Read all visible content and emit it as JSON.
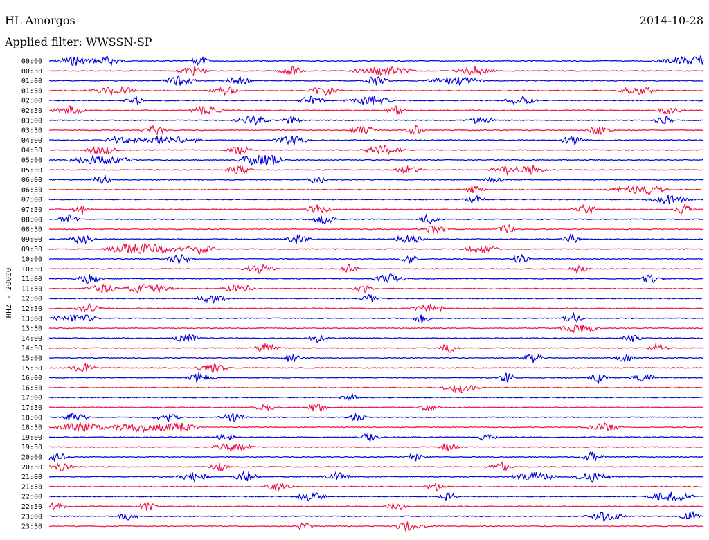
{
  "header": {
    "station": "HL Amorgos",
    "date": "2014-10-28",
    "filter": "Applied filter: WWSSN-SP"
  },
  "channel_label": "HHZ - 20000",
  "colors": {
    "trace_a": "#0000dd",
    "trace_b": "#ee1144",
    "text": "#000000",
    "background": "#ffffff"
  },
  "chart_data": {
    "type": "line",
    "title": "",
    "xlabel": "",
    "ylabel": "HHZ - 20000",
    "grid": false,
    "legend": "none",
    "series": [
      {
        "label": "00:00",
        "color": "#0000dd",
        "bursts": [
          [
            0.04,
            0.06
          ],
          [
            0.09,
            0.05
          ],
          [
            0.23,
            0.03
          ],
          [
            0.985,
            0.11
          ]
        ]
      },
      {
        "label": "00:30",
        "color": "#ee1144",
        "bursts": [
          [
            0.22,
            0.05
          ],
          [
            0.37,
            0.04
          ],
          [
            0.51,
            0.09
          ],
          [
            0.65,
            0.06
          ]
        ]
      },
      {
        "label": "01:00",
        "color": "#0000dd",
        "bursts": [
          [
            0.2,
            0.05
          ],
          [
            0.29,
            0.04
          ],
          [
            0.5,
            0.04
          ],
          [
            0.62,
            0.08
          ]
        ]
      },
      {
        "label": "01:30",
        "color": "#ee1144",
        "bursts": [
          [
            0.1,
            0.07
          ],
          [
            0.27,
            0.05
          ],
          [
            0.42,
            0.05
          ],
          [
            0.9,
            0.06
          ]
        ]
      },
      {
        "label": "02:00",
        "color": "#0000dd",
        "bursts": [
          [
            0.13,
            0.03
          ],
          [
            0.4,
            0.04
          ],
          [
            0.49,
            0.07
          ],
          [
            0.72,
            0.05
          ]
        ]
      },
      {
        "label": "02:30",
        "color": "#ee1144",
        "bursts": [
          [
            0.03,
            0.05
          ],
          [
            0.24,
            0.05
          ],
          [
            0.53,
            0.03
          ],
          [
            0.95,
            0.04
          ]
        ]
      },
      {
        "label": "03:00",
        "color": "#0000dd",
        "bursts": [
          [
            0.31,
            0.05
          ],
          [
            0.37,
            0.03
          ],
          [
            0.66,
            0.04
          ],
          [
            0.94,
            0.03
          ]
        ]
      },
      {
        "label": "03:30",
        "color": "#ee1144",
        "bursts": [
          [
            0.16,
            0.04
          ],
          [
            0.48,
            0.04
          ],
          [
            0.56,
            0.03
          ],
          [
            0.84,
            0.04
          ]
        ]
      },
      {
        "label": "04:00",
        "color": "#0000dd",
        "bursts": [
          [
            0.11,
            0.05
          ],
          [
            0.18,
            0.1
          ],
          [
            0.37,
            0.05
          ],
          [
            0.8,
            0.04
          ]
        ]
      },
      {
        "label": "04:30",
        "color": "#ee1144",
        "bursts": [
          [
            0.08,
            0.05
          ],
          [
            0.29,
            0.04
          ],
          [
            0.51,
            0.06
          ]
        ]
      },
      {
        "label": "05:00",
        "color": "#0000dd",
        "bursts": [
          [
            0.08,
            0.1
          ],
          [
            0.31,
            0.05
          ],
          [
            0.34,
            0.04
          ]
        ]
      },
      {
        "label": "05:30",
        "color": "#ee1144",
        "bursts": [
          [
            0.29,
            0.04
          ],
          [
            0.55,
            0.04
          ],
          [
            0.7,
            0.05
          ],
          [
            0.74,
            0.04
          ]
        ]
      },
      {
        "label": "06:00",
        "color": "#0000dd",
        "bursts": [
          [
            0.08,
            0.03
          ],
          [
            0.41,
            0.03
          ],
          [
            0.68,
            0.03
          ]
        ]
      },
      {
        "label": "06:30",
        "color": "#ee1144",
        "bursts": [
          [
            0.65,
            0.03
          ],
          [
            0.88,
            0.05
          ],
          [
            0.92,
            0.05
          ]
        ]
      },
      {
        "label": "07:00",
        "color": "#0000dd",
        "bursts": [
          [
            0.65,
            0.03
          ],
          [
            0.95,
            0.07
          ]
        ]
      },
      {
        "label": "07:30",
        "color": "#ee1144",
        "bursts": [
          [
            0.05,
            0.03
          ],
          [
            0.41,
            0.04
          ],
          [
            0.82,
            0.04
          ],
          [
            0.97,
            0.03
          ]
        ]
      },
      {
        "label": "08:00",
        "color": "#0000dd",
        "bursts": [
          [
            0.03,
            0.03
          ],
          [
            0.42,
            0.04
          ],
          [
            0.58,
            0.03
          ]
        ]
      },
      {
        "label": "08:30",
        "color": "#ee1144",
        "bursts": [
          [
            0.59,
            0.04
          ],
          [
            0.7,
            0.03
          ]
        ]
      },
      {
        "label": "09:00",
        "color": "#0000dd",
        "bursts": [
          [
            0.05,
            0.04
          ],
          [
            0.38,
            0.04
          ],
          [
            0.55,
            0.05
          ],
          [
            0.8,
            0.03
          ]
        ]
      },
      {
        "label": "09:30",
        "color": "#ee1144",
        "bursts": [
          [
            0.12,
            0.07
          ],
          [
            0.16,
            0.09
          ],
          [
            0.23,
            0.05
          ],
          [
            0.66,
            0.05
          ]
        ]
      },
      {
        "label": "10:00",
        "color": "#0000dd",
        "bursts": [
          [
            0.2,
            0.04
          ],
          [
            0.55,
            0.03
          ],
          [
            0.72,
            0.03
          ]
        ]
      },
      {
        "label": "10:30",
        "color": "#ee1144",
        "bursts": [
          [
            0.32,
            0.05
          ],
          [
            0.46,
            0.03
          ],
          [
            0.81,
            0.03
          ]
        ]
      },
      {
        "label": "11:00",
        "color": "#0000dd",
        "bursts": [
          [
            0.06,
            0.04
          ],
          [
            0.52,
            0.05
          ],
          [
            0.92,
            0.04
          ]
        ]
      },
      {
        "label": "11:30",
        "color": "#ee1144",
        "bursts": [
          [
            0.08,
            0.05
          ],
          [
            0.15,
            0.08
          ],
          [
            0.29,
            0.05
          ],
          [
            0.48,
            0.03
          ]
        ]
      },
      {
        "label": "12:00",
        "color": "#0000dd",
        "bursts": [
          [
            0.25,
            0.05
          ],
          [
            0.49,
            0.03
          ]
        ]
      },
      {
        "label": "12:30",
        "color": "#ee1144",
        "bursts": [
          [
            0.06,
            0.04
          ],
          [
            0.58,
            0.05
          ]
        ]
      },
      {
        "label": "13:00",
        "color": "#0000dd",
        "bursts": [
          [
            0.04,
            0.07
          ],
          [
            0.57,
            0.03
          ],
          [
            0.8,
            0.03
          ]
        ]
      },
      {
        "label": "13:30",
        "color": "#ee1144",
        "bursts": [
          [
            0.81,
            0.06
          ]
        ]
      },
      {
        "label": "14:00",
        "color": "#0000dd",
        "bursts": [
          [
            0.21,
            0.04
          ],
          [
            0.41,
            0.03
          ],
          [
            0.89,
            0.03
          ]
        ]
      },
      {
        "label": "14:30",
        "color": "#ee1144",
        "bursts": [
          [
            0.33,
            0.04
          ],
          [
            0.61,
            0.03
          ],
          [
            0.93,
            0.03
          ]
        ]
      },
      {
        "label": "15:00",
        "color": "#0000dd",
        "bursts": [
          [
            0.37,
            0.03
          ],
          [
            0.74,
            0.03
          ],
          [
            0.88,
            0.03
          ]
        ]
      },
      {
        "label": "15:30",
        "color": "#ee1144",
        "bursts": [
          [
            0.05,
            0.04
          ],
          [
            0.25,
            0.05
          ]
        ]
      },
      {
        "label": "16:00",
        "color": "#0000dd",
        "bursts": [
          [
            0.23,
            0.05
          ],
          [
            0.7,
            0.03
          ],
          [
            0.84,
            0.03
          ],
          [
            0.91,
            0.04
          ]
        ]
      },
      {
        "label": "16:30",
        "color": "#ee1144",
        "bursts": [
          [
            0.63,
            0.06
          ]
        ]
      },
      {
        "label": "17:00",
        "color": "#0000dd",
        "bursts": [
          [
            0.46,
            0.03
          ]
        ]
      },
      {
        "label": "17:30",
        "color": "#ee1144",
        "bursts": [
          [
            0.33,
            0.03
          ],
          [
            0.41,
            0.03
          ],
          [
            0.58,
            0.03
          ]
        ]
      },
      {
        "label": "18:00",
        "color": "#0000dd",
        "bursts": [
          [
            0.04,
            0.04
          ],
          [
            0.18,
            0.04
          ],
          [
            0.28,
            0.04
          ],
          [
            0.47,
            0.03
          ]
        ]
      },
      {
        "label": "18:30",
        "color": "#ee1144",
        "bursts": [
          [
            0.05,
            0.08
          ],
          [
            0.14,
            0.1
          ],
          [
            0.2,
            0.06
          ],
          [
            0.85,
            0.05
          ]
        ]
      },
      {
        "label": "19:00",
        "color": "#0000dd",
        "bursts": [
          [
            0.27,
            0.03
          ],
          [
            0.49,
            0.03
          ],
          [
            0.67,
            0.03
          ]
        ]
      },
      {
        "label": "19:30",
        "color": "#ee1144",
        "bursts": [
          [
            0.28,
            0.06
          ],
          [
            0.61,
            0.03
          ]
        ]
      },
      {
        "label": "20:00",
        "color": "#0000dd",
        "bursts": [
          [
            0.01,
            0.04
          ],
          [
            0.56,
            0.03
          ],
          [
            0.83,
            0.04
          ]
        ]
      },
      {
        "label": "20:30",
        "color": "#ee1144",
        "bursts": [
          [
            0.02,
            0.04
          ],
          [
            0.26,
            0.03
          ],
          [
            0.69,
            0.04
          ]
        ]
      },
      {
        "label": "21:00",
        "color": "#0000dd",
        "bursts": [
          [
            0.22,
            0.05
          ],
          [
            0.3,
            0.04
          ],
          [
            0.44,
            0.04
          ],
          [
            0.74,
            0.07
          ],
          [
            0.83,
            0.06
          ]
        ]
      },
      {
        "label": "21:30",
        "color": "#ee1144",
        "bursts": [
          [
            0.35,
            0.04
          ],
          [
            0.59,
            0.03
          ]
        ]
      },
      {
        "label": "22:00",
        "color": "#0000dd",
        "bursts": [
          [
            0.4,
            0.05
          ],
          [
            0.61,
            0.03
          ],
          [
            0.95,
            0.07
          ]
        ]
      },
      {
        "label": "22:30",
        "color": "#ee1144",
        "bursts": [
          [
            0.01,
            0.03
          ],
          [
            0.15,
            0.03
          ],
          [
            0.53,
            0.03
          ]
        ]
      },
      {
        "label": "23:00",
        "color": "#0000dd",
        "bursts": [
          [
            0.12,
            0.03
          ],
          [
            0.85,
            0.06
          ],
          [
            0.98,
            0.03
          ]
        ]
      },
      {
        "label": "23:30",
        "color": "#ee1144",
        "bursts": [
          [
            0.39,
            0.03
          ],
          [
            0.55,
            0.05
          ]
        ]
      }
    ]
  }
}
